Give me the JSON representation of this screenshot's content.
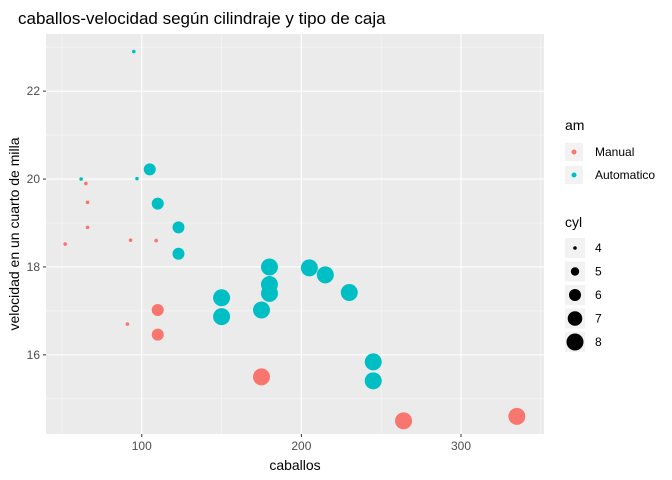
{
  "chart_data": {
    "type": "scatter",
    "title": "caballos-velocidad según cilindraje y tipo de caja",
    "xlabel": "caballos",
    "ylabel": "velocidad en un cuarto de milla",
    "xlim": [
      40,
      352
    ],
    "ylim": [
      14.2,
      23.3
    ],
    "x_ticks": [
      100,
      200,
      300
    ],
    "y_ticks": [
      16,
      18,
      20,
      22
    ],
    "grid": true,
    "background": "#ebebeb",
    "legend_placement": "right",
    "color_legend": {
      "title": "am",
      "entries": [
        {
          "label": "Manual",
          "color": "#f8766d"
        },
        {
          "label": "Automatico",
          "color": "#00bfc4"
        }
      ]
    },
    "size_legend": {
      "title": "cyl",
      "entries": [
        {
          "label": "4",
          "value": 4
        },
        {
          "label": "5",
          "value": 5
        },
        {
          "label": "6",
          "value": 6
        },
        {
          "label": "7",
          "value": 7
        },
        {
          "label": "8",
          "value": 8
        }
      ]
    },
    "series": [
      {
        "name": "Manual",
        "color": "#f8766d",
        "points": [
          {
            "x": 110,
            "y": 16.46,
            "cyl": 6
          },
          {
            "x": 110,
            "y": 17.02,
            "cyl": 6
          },
          {
            "x": 175,
            "y": 15.5,
            "cyl": 8
          },
          {
            "x": 264,
            "y": 14.5,
            "cyl": 8
          },
          {
            "x": 335,
            "y": 14.6,
            "cyl": 8
          },
          {
            "x": 93,
            "y": 18.61,
            "cyl": 4
          },
          {
            "x": 66,
            "y": 19.47,
            "cyl": 4
          },
          {
            "x": 52,
            "y": 18.52,
            "cyl": 4
          },
          {
            "x": 65,
            "y": 19.9,
            "cyl": 4
          },
          {
            "x": 66,
            "y": 18.9,
            "cyl": 4
          },
          {
            "x": 91,
            "y": 16.7,
            "cyl": 4
          },
          {
            "x": 109,
            "y": 18.6,
            "cyl": 4
          }
        ]
      },
      {
        "name": "Automatico",
        "color": "#00bfc4",
        "points": [
          {
            "x": 95,
            "y": 22.9,
            "cyl": 4
          },
          {
            "x": 62,
            "y": 20.0,
            "cyl": 4
          },
          {
            "x": 97,
            "y": 20.01,
            "cyl": 4
          },
          {
            "x": 105,
            "y": 20.22,
            "cyl": 6
          },
          {
            "x": 110,
            "y": 19.44,
            "cyl": 6
          },
          {
            "x": 123,
            "y": 18.3,
            "cyl": 6
          },
          {
            "x": 123,
            "y": 18.9,
            "cyl": 6
          },
          {
            "x": 175,
            "y": 17.02,
            "cyl": 8
          },
          {
            "x": 245,
            "y": 15.84,
            "cyl": 8
          },
          {
            "x": 180,
            "y": 17.4,
            "cyl": 8
          },
          {
            "x": 180,
            "y": 17.6,
            "cyl": 8
          },
          {
            "x": 180,
            "y": 18.0,
            "cyl": 8
          },
          {
            "x": 205,
            "y": 17.98,
            "cyl": 8
          },
          {
            "x": 215,
            "y": 17.82,
            "cyl": 8
          },
          {
            "x": 230,
            "y": 17.42,
            "cyl": 8
          },
          {
            "x": 150,
            "y": 16.87,
            "cyl": 8
          },
          {
            "x": 150,
            "y": 17.3,
            "cyl": 8
          },
          {
            "x": 245,
            "y": 15.41,
            "cyl": 8
          }
        ]
      }
    ]
  }
}
